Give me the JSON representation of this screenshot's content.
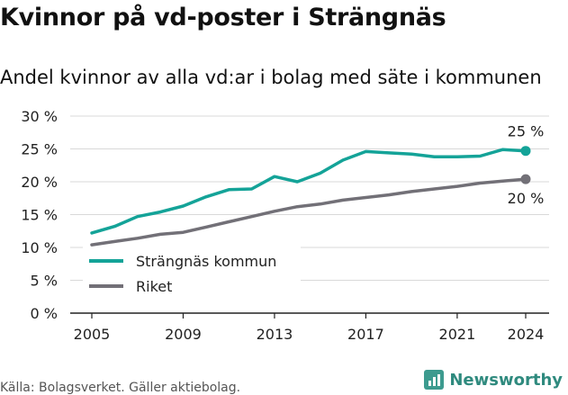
{
  "header": {
    "title": "Kvinnor på vd-poster i Strängnäs",
    "subtitle": "Andel kvinnor av alla vd:ar i bolag med säte i kommunen"
  },
  "footer": {
    "source": "Källa: Bolagsverket. Gäller aktiebolag.",
    "brand": "Newsworthy"
  },
  "colors": {
    "strangnas": "#14a398",
    "riket": "#727077",
    "grid": "#d9d9d9",
    "axis": "#222222"
  },
  "chart_data": {
    "type": "line",
    "title": "Kvinnor på vd-poster i Strängnäs",
    "subtitle": "Andel kvinnor av alla vd:ar i bolag med säte i kommunen",
    "xlabel": "",
    "ylabel": "",
    "x": [
      2005,
      2006,
      2007,
      2008,
      2009,
      2010,
      2011,
      2012,
      2013,
      2014,
      2015,
      2016,
      2017,
      2018,
      2019,
      2020,
      2021,
      2022,
      2023,
      2024
    ],
    "xticks": [
      2005,
      2009,
      2013,
      2017,
      2021,
      2024
    ],
    "xlim": [
      2005,
      2024
    ],
    "ylim": [
      0,
      30
    ],
    "yticks": [
      0,
      5,
      10,
      15,
      20,
      25,
      30
    ],
    "ytick_labels": [
      "0 %",
      "5 %",
      "10 %",
      "15 %",
      "20 %",
      "25 %",
      "30 %"
    ],
    "grid": true,
    "legend_position": "bottom-left",
    "series": [
      {
        "name": "Strängnäs kommun",
        "color": "#14a398",
        "values": [
          12.2,
          13.2,
          14.7,
          15.4,
          16.3,
          17.7,
          18.8,
          18.9,
          20.8,
          20.0,
          21.3,
          23.3,
          24.6,
          24.4,
          24.2,
          23.8,
          23.8,
          23.9,
          24.9,
          24.7
        ],
        "end_label": "25 %"
      },
      {
        "name": "Riket",
        "color": "#727077",
        "values": [
          10.4,
          10.9,
          11.4,
          12.0,
          12.3,
          13.1,
          13.9,
          14.7,
          15.5,
          16.2,
          16.6,
          17.2,
          17.6,
          18.0,
          18.5,
          18.9,
          19.3,
          19.8,
          20.1,
          20.4
        ],
        "end_label": "20 %"
      }
    ]
  }
}
